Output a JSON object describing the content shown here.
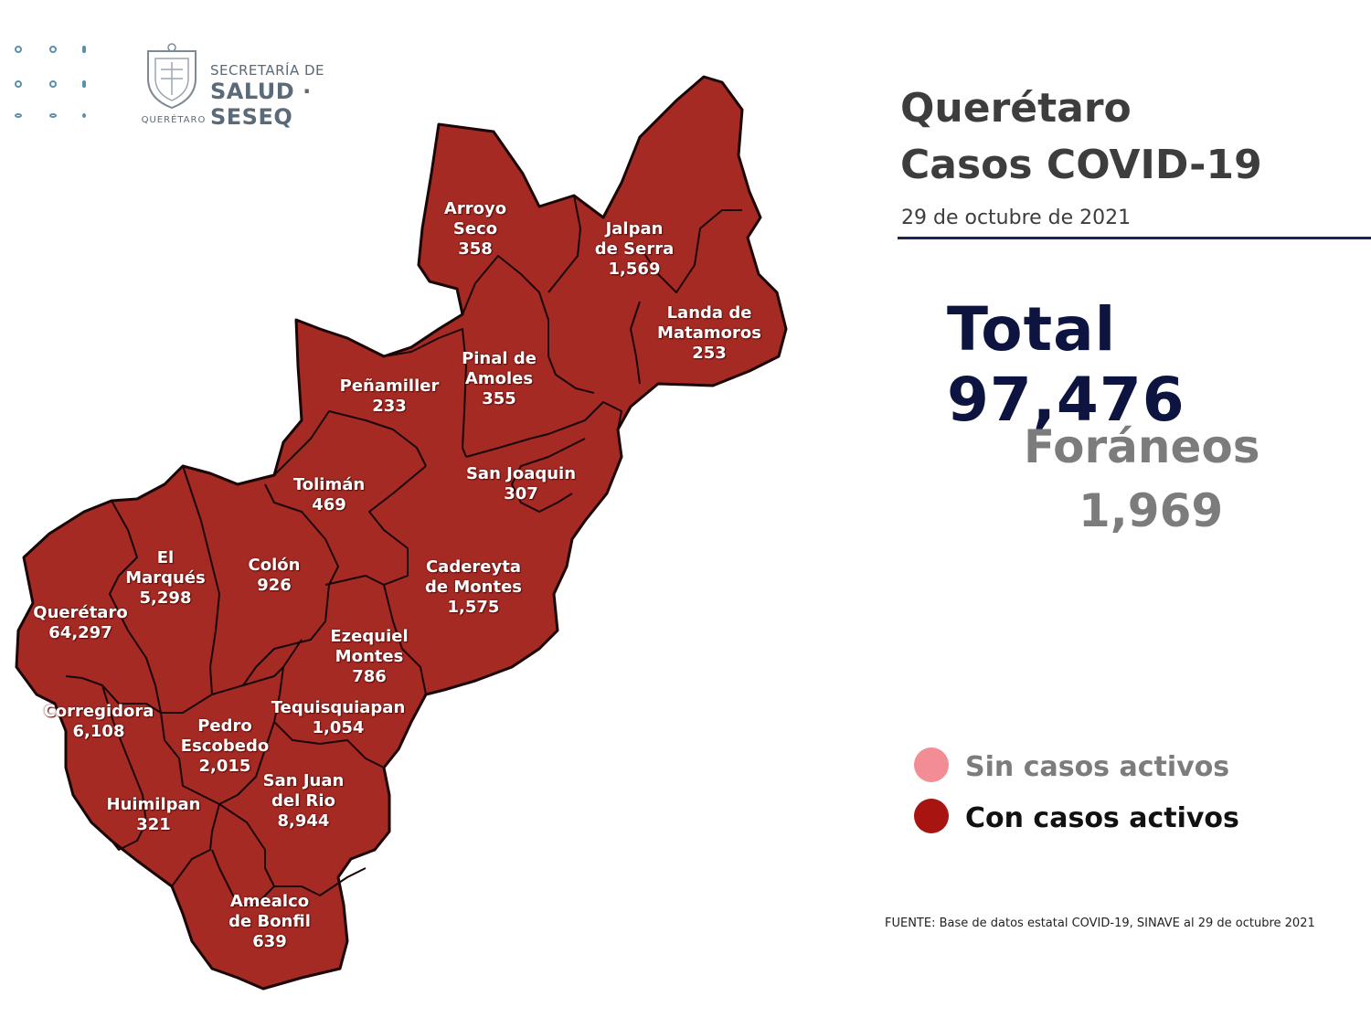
{
  "header": {
    "logo_line1": "SECRETARÍA DE",
    "logo_line2": "SALUD · SESEQ",
    "logo_caption": "QUERÉTARO"
  },
  "summary": {
    "title_line1": "Querétaro",
    "title_line2": "Casos COVID-19",
    "date": "29 de octubre de 2021",
    "total_text": "Total 97,476",
    "foraneos_label": "Foráneos",
    "foraneos_value": "1,969"
  },
  "legend": {
    "items": [
      {
        "label": "Sin casos activos",
        "color": "#f28c95",
        "text_color": "#7c7c7c"
      },
      {
        "label": "Con casos activos",
        "color": "#a81410",
        "text_color": "#111111"
      }
    ]
  },
  "source": "FUENTE: Base de datos estatal COVID-19, SINAVE  al 29 de octubre 2021",
  "map": {
    "fill": "#a52a24",
    "border": "#1a0606",
    "municipalities": [
      {
        "id": "arroyo-seco",
        "name_lines": [
          "Arroyo",
          "Seco"
        ],
        "cases": "358"
      },
      {
        "id": "jalpan-de-serra",
        "name_lines": [
          "Jalpan",
          "de Serra"
        ],
        "cases": "1,569"
      },
      {
        "id": "landa-de-matamoros",
        "name_lines": [
          "Landa de",
          "Matamoros"
        ],
        "cases": "253"
      },
      {
        "id": "pinal-de-amoles",
        "name_lines": [
          "Pinal de",
          "Amoles"
        ],
        "cases": "355"
      },
      {
        "id": "penamiller",
        "name_lines": [
          "Peñamiller"
        ],
        "cases": "233"
      },
      {
        "id": "san-joaquin",
        "name_lines": [
          "San Joaquin"
        ],
        "cases": "307"
      },
      {
        "id": "toliman",
        "name_lines": [
          "Tolimán"
        ],
        "cases": "469"
      },
      {
        "id": "cadereyta-de-montes",
        "name_lines": [
          "Cadereyta",
          "de Montes"
        ],
        "cases": "1,575"
      },
      {
        "id": "el-marques",
        "name_lines": [
          "El",
          "Marqués"
        ],
        "cases": "5,298"
      },
      {
        "id": "colon",
        "name_lines": [
          "Colón"
        ],
        "cases": "926"
      },
      {
        "id": "queretaro",
        "name_lines": [
          "Querétaro"
        ],
        "cases": "64,297"
      },
      {
        "id": "ezequiel-montes",
        "name_lines": [
          "Ezequiel",
          "Montes"
        ],
        "cases": "786"
      },
      {
        "id": "corregidora",
        "name_lines": [
          "Corregidora"
        ],
        "cases": "6,108"
      },
      {
        "id": "tequisquiapan",
        "name_lines": [
          "Tequisquiapan"
        ],
        "cases": "1,054"
      },
      {
        "id": "pedro-escobedo",
        "name_lines": [
          "Pedro",
          "Escobedo"
        ],
        "cases": "2,015"
      },
      {
        "id": "san-juan-del-rio",
        "name_lines": [
          "San Juan",
          "del Rio"
        ],
        "cases": "8,944"
      },
      {
        "id": "huimilpan",
        "name_lines": [
          "Huimilpan"
        ],
        "cases": "321"
      },
      {
        "id": "amealco-de-bonfil",
        "name_lines": [
          "Amealco",
          "de Bonfil"
        ],
        "cases": "639"
      }
    ]
  }
}
